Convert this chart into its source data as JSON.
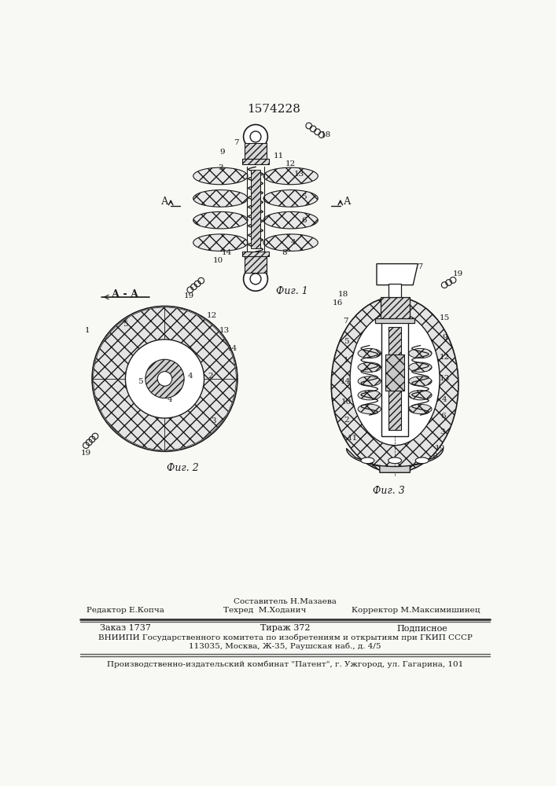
{
  "patent_number": "1574228",
  "background_color": "#f8f8f5",
  "line_color": "#1a1a1a",
  "fig1_label": "Фиг. 1",
  "fig2_label": "Фиг. 2",
  "fig3_label": "Фиг. 3",
  "section_label": "А - А",
  "footer_line0_center": "Составитель Н.Мазаева",
  "footer_line1_left": "Редактор Е.Копча",
  "footer_line1_center": "Техред  М.Ходанич",
  "footer_line1_right": "Корректор М.Максимишинец",
  "footer_order": "Заказ 1737",
  "footer_print": "Тираж 372",
  "footer_sub": "Подписное",
  "footer_vnipi": "ВНИИПИ Государственного комитета по изобретениям и открытиям при ГКИП СССР",
  "footer_address": "113035, Москва, Ж-35, Раушская наб., д. 4/5",
  "footer_publisher": "Производственно-издательский комбинат \"Патент\", г. Ужгород, ул. Гагарина, 101",
  "drawing_color": "#1a1a1a"
}
